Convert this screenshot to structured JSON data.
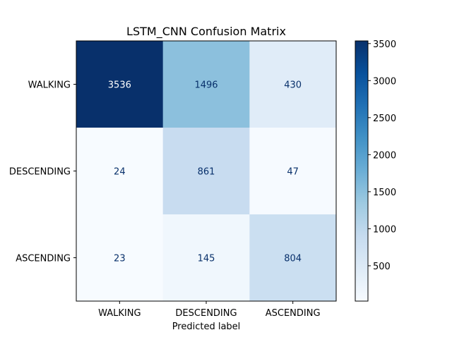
{
  "chart_data": {
    "type": "heatmap",
    "title": "LSTM_CNN Confusion Matrix",
    "xlabel": "Predicted label",
    "ylabel": "",
    "x_categories": [
      "WALKING",
      "DESCENDING",
      "ASCENDING"
    ],
    "y_categories": [
      "WALKING",
      "DESCENDING",
      "ASCENDING"
    ],
    "values": [
      [
        3536,
        1496,
        430
      ],
      [
        24,
        861,
        47
      ],
      [
        23,
        145,
        804
      ]
    ],
    "colormap": "Blues",
    "vmin": 23,
    "vmax": 3536,
    "colorbar": {
      "ticks": [
        500,
        1000,
        1500,
        2000,
        2500,
        3000,
        3500
      ],
      "tick_labels": [
        "500",
        "1000",
        "1500",
        "2000",
        "2500",
        "3000",
        "3500"
      ]
    },
    "text_color_dark": "#08306b",
    "text_color_light": "#ffffff",
    "grid": false
  }
}
